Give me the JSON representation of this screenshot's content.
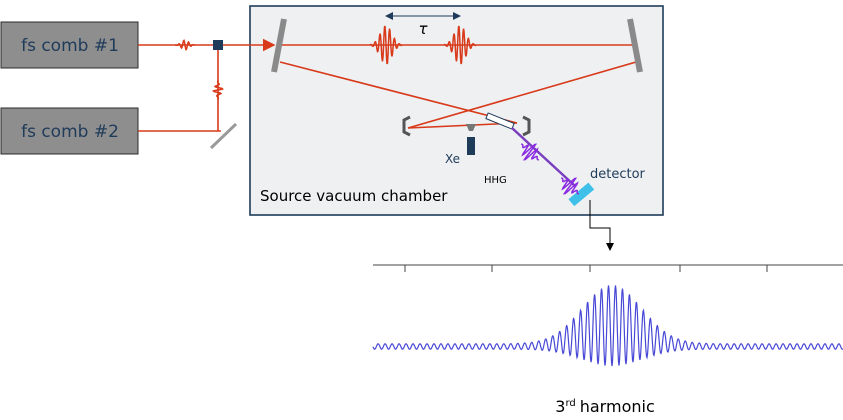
{
  "sources": [
    {
      "label": "fs comb #1"
    },
    {
      "label": "fs comb #2"
    }
  ],
  "chamber": {
    "label": "Source vacuum chamber",
    "delay": "τ",
    "gas": "Xe",
    "hhg": "HHG",
    "detector": "detector"
  },
  "result": {
    "order": "3",
    "suffix": "rd",
    "label": "harmonic"
  }
}
